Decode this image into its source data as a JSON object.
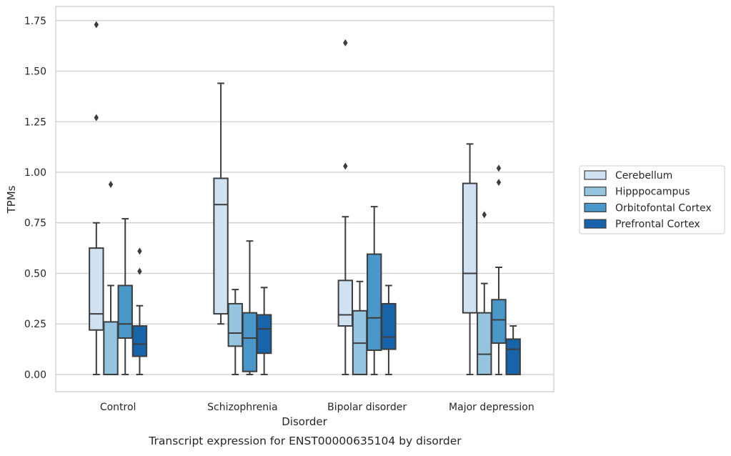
{
  "caption": "Transcript expression for ENST00000635104 by disorder",
  "chart_data": {
    "type": "box",
    "xlabel": "Disorder",
    "ylabel": "TPMs",
    "ylim": [
      -0.085,
      1.82
    ],
    "yticks": [
      0.0,
      0.25,
      0.5,
      0.75,
      1.0,
      1.25,
      1.5,
      1.75
    ],
    "ytick_labels": [
      "0.00",
      "0.25",
      "0.50",
      "0.75",
      "1.00",
      "1.25",
      "1.50",
      "1.75"
    ],
    "grid": "horizontal",
    "legend_position": "right",
    "categories": [
      "Control",
      "Schizophrenia",
      "Bipolar disorder",
      "Major depression"
    ],
    "series": [
      {
        "name": "Cerebellum",
        "color": "#d0e1f2",
        "boxes": [
          {
            "whisker_low": 0.0,
            "q1": 0.22,
            "median": 0.3,
            "q3": 0.625,
            "whisker_high": 0.75,
            "outliers": [
              1.27,
              1.73
            ]
          },
          {
            "whisker_low": 0.25,
            "q1": 0.3,
            "median": 0.84,
            "q3": 0.97,
            "whisker_high": 1.44,
            "outliers": []
          },
          {
            "whisker_low": 0.0,
            "q1": 0.24,
            "median": 0.295,
            "q3": 0.465,
            "whisker_high": 0.78,
            "outliers": [
              1.03,
              1.64
            ]
          },
          {
            "whisker_low": 0.0,
            "q1": 0.305,
            "median": 0.5,
            "q3": 0.945,
            "whisker_high": 1.14,
            "outliers": []
          }
        ]
      },
      {
        "name": "Hipppocampus",
        "color": "#94c4df",
        "boxes": [
          {
            "whisker_low": 0.0,
            "q1": 0.0,
            "median": 0.0,
            "q3": 0.26,
            "whisker_high": 0.44,
            "outliers": [
              0.94
            ]
          },
          {
            "whisker_low": 0.0,
            "q1": 0.14,
            "median": 0.205,
            "q3": 0.35,
            "whisker_high": 0.42,
            "outliers": []
          },
          {
            "whisker_low": 0.0,
            "q1": 0.0,
            "median": 0.155,
            "q3": 0.315,
            "whisker_high": 0.46,
            "outliers": []
          },
          {
            "whisker_low": 0.0,
            "q1": 0.0,
            "median": 0.1,
            "q3": 0.305,
            "whisker_high": 0.45,
            "outliers": [
              0.79
            ]
          }
        ]
      },
      {
        "name": "Orbitofontal Cortex",
        "color": "#4a98c9",
        "boxes": [
          {
            "whisker_low": 0.0,
            "q1": 0.18,
            "median": 0.25,
            "q3": 0.44,
            "whisker_high": 0.77,
            "outliers": []
          },
          {
            "whisker_low": 0.0,
            "q1": 0.015,
            "median": 0.18,
            "q3": 0.305,
            "whisker_high": 0.66,
            "outliers": []
          },
          {
            "whisker_low": 0.0,
            "q1": 0.12,
            "median": 0.28,
            "q3": 0.595,
            "whisker_high": 0.83,
            "outliers": []
          },
          {
            "whisker_low": 0.0,
            "q1": 0.155,
            "median": 0.27,
            "q3": 0.37,
            "whisker_high": 0.53,
            "outliers": [
              0.95,
              1.02
            ]
          }
        ]
      },
      {
        "name": "Prefrontal Cortex",
        "color": "#1764ab",
        "boxes": [
          {
            "whisker_low": 0.0,
            "q1": 0.09,
            "median": 0.15,
            "q3": 0.24,
            "whisker_high": 0.34,
            "outliers": [
              0.51,
              0.61
            ]
          },
          {
            "whisker_low": 0.0,
            "q1": 0.105,
            "median": 0.225,
            "q3": 0.295,
            "whisker_high": 0.43,
            "outliers": []
          },
          {
            "whisker_low": 0.0,
            "q1": 0.125,
            "median": 0.185,
            "q3": 0.35,
            "whisker_high": 0.44,
            "outliers": []
          },
          {
            "whisker_low": 0.0,
            "q1": 0.0,
            "median": 0.125,
            "q3": 0.175,
            "whisker_high": 0.24,
            "outliers": []
          }
        ]
      }
    ]
  }
}
